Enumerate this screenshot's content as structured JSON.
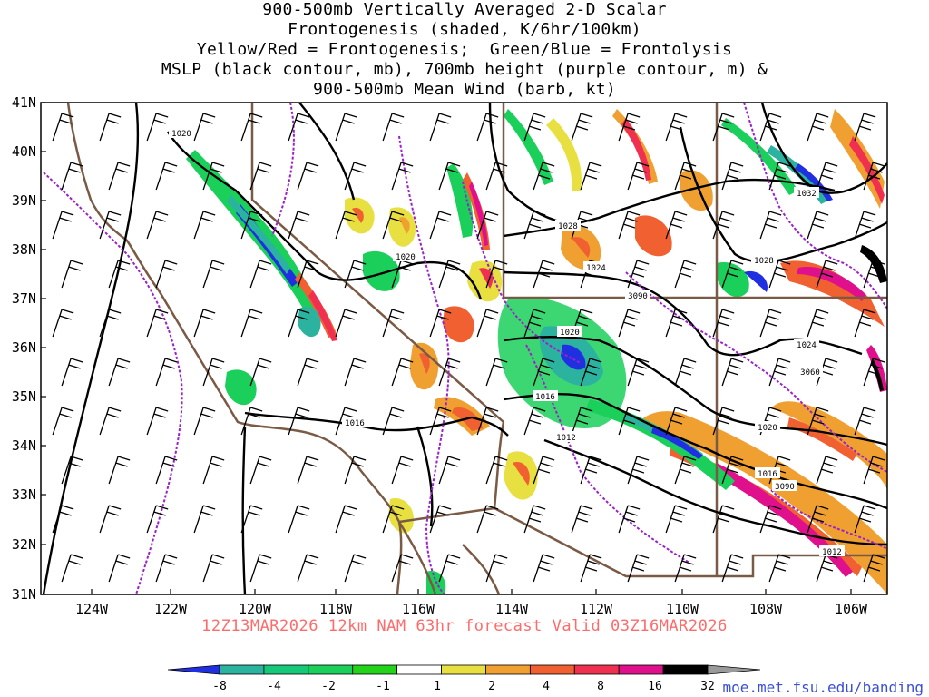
{
  "title_lines": [
    "900-500mb Vertically Averaged 2-D Scalar",
    "Frontogenesis (shaded, K/6hr/100km)",
    "Yellow/Red = Frontogenesis;  Green/Blue = Frontolysis",
    "MSLP (black contour, mb), 700mb height (purple contour, m) &",
    "900-500mb Mean Wind (barb, kt)"
  ],
  "valid_text": "12Z13MAR2026 12km NAM 63hr forecast Valid 03Z16MAR2026",
  "credit_text": "moe.met.fsu.edu/banding",
  "lat_labels": [
    "41N",
    "40N",
    "39N",
    "38N",
    "37N",
    "36N",
    "35N",
    "34N",
    "33N",
    "32N",
    "31N"
  ],
  "lon_labels": [
    "124W",
    "122W",
    "120W",
    "118W",
    "116W",
    "114W",
    "112W",
    "110W",
    "108W",
    "106W"
  ],
  "isobar_labels": [
    "1020",
    "1020",
    "1028",
    "1024",
    "1020",
    "1016",
    "1012",
    "1016",
    "1020",
    "1016",
    "1028",
    "1032",
    "1024",
    "1012"
  ],
  "height_labels": [
    "3090",
    "3060",
    "3090"
  ],
  "colorbar": {
    "ticks": [
      "-8",
      "-4",
      "-2",
      "-1",
      "1",
      "2",
      "4",
      "8",
      "16",
      "32"
    ],
    "colors": [
      "#2030e0",
      "#2bb3a0",
      "#16c87a",
      "#1ad05a",
      "#22d31a",
      "#ffffff",
      "#e8e040",
      "#f0a030",
      "#f06030",
      "#f03050",
      "#e0108c",
      "#000000",
      "#9a9a9a"
    ]
  }
}
